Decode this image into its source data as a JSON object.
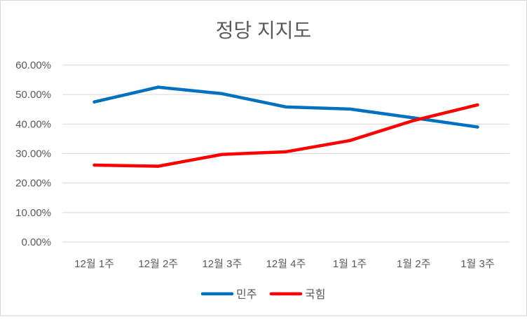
{
  "chart_data": {
    "type": "line",
    "title": "정당 지지도",
    "xlabel": "",
    "ylabel": "",
    "categories": [
      "12월 1주",
      "12월 2주",
      "12월 3주",
      "12월 4주",
      "1월 1주",
      "1월 2주",
      "1월 3주"
    ],
    "y_ticks": [
      "0.00%",
      "10.00%",
      "20.00%",
      "30.00%",
      "40.00%",
      "50.00%",
      "60.00%"
    ],
    "ylim": [
      0,
      60
    ],
    "grid": true,
    "legend_position": "bottom",
    "series": [
      {
        "name": "민주",
        "color": "#0070c0",
        "values": [
          47.5,
          52.5,
          50.3,
          45.8,
          45.1,
          42.1,
          39.0
        ]
      },
      {
        "name": "국힘",
        "color": "#ff0000",
        "values": [
          26.1,
          25.7,
          29.7,
          30.6,
          34.4,
          41.2,
          46.5
        ]
      }
    ]
  }
}
